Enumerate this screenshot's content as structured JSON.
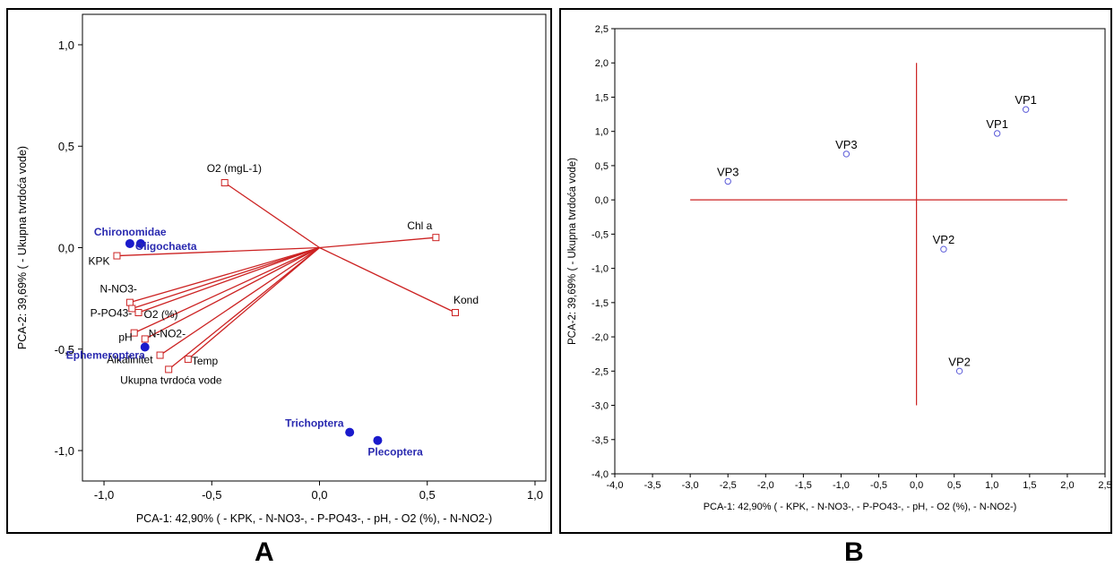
{
  "chart_data": [
    {
      "panel": "A",
      "type": "scatter",
      "xlabel": "PCA-1: 42,90% ( - KPK, - N-NO3-, - P-PO43-, - pH, - O2 (%), - N-NO2-)",
      "ylabel": "PCA-2: 39,69% ( - Ukupna tvrdoća vode)",
      "xlim": [
        -1.1,
        1.05
      ],
      "ylim": [
        -1.15,
        1.15
      ],
      "x_ticks": [
        -1.0,
        -0.5,
        0.0,
        0.5,
        1.0
      ],
      "x_tick_labels": [
        "-1,0",
        "-0,5",
        "0,0",
        "0,5",
        "1,0"
      ],
      "y_ticks": [
        -1.0,
        -0.5,
        0.0,
        0.5,
        1.0
      ],
      "y_tick_labels": [
        "-1,0",
        "-0,5",
        "0,0",
        "0,5",
        "1,0"
      ],
      "grid": false,
      "variables": [
        {
          "label": "O2 (mgL-1)",
          "x": -0.44,
          "y": 0.32
        },
        {
          "label": "Chl a",
          "x": 0.54,
          "y": 0.05
        },
        {
          "label": "Kond",
          "x": 0.63,
          "y": -0.32
        },
        {
          "label": "KPK",
          "x": -0.94,
          "y": -0.04
        },
        {
          "label": "N-NO3-",
          "x": -0.88,
          "y": -0.27
        },
        {
          "label": "P-PO43-",
          "x": -0.87,
          "y": -0.3
        },
        {
          "label": "O2 (%)",
          "x": -0.84,
          "y": -0.32
        },
        {
          "label": "pH",
          "x": -0.86,
          "y": -0.42
        },
        {
          "label": "N-NO2-",
          "x": -0.81,
          "y": -0.45
        },
        {
          "label": "Alkalinitet",
          "x": -0.74,
          "y": -0.53
        },
        {
          "label": "Temp",
          "x": -0.61,
          "y": -0.55
        },
        {
          "label": "Ukupna tvrdoća vode",
          "x": -0.7,
          "y": -0.6
        }
      ],
      "taxa": [
        {
          "label": "Chironomidae",
          "x": -0.88,
          "y": 0.02
        },
        {
          "label": "Oligochaeta",
          "x": -0.83,
          "y": 0.02
        },
        {
          "label": "Ephemeroptera",
          "x": -0.81,
          "y": -0.49
        },
        {
          "label": "Trichoptera",
          "x": 0.14,
          "y": -0.91
        },
        {
          "label": "Plecoptera",
          "x": 0.27,
          "y": -0.95
        }
      ],
      "colors": {
        "vector": "#cc2222",
        "taxa": "#1a1acc",
        "taxa_label": "#2a2ab0"
      }
    },
    {
      "panel": "B",
      "type": "scatter",
      "xlabel": "PCA-1: 42,90% ( - KPK, - N-NO3-, - P-PO43-, - pH, - O2 (%), - N-NO2-)",
      "ylabel": "PCA-2: 39,69% ( - Ukupna tvrdoća vode)",
      "xlim": [
        -4.0,
        2.5
      ],
      "ylim": [
        -4.0,
        2.5
      ],
      "x_ticks": [
        -4.0,
        -3.5,
        -3.0,
        -2.5,
        -2.0,
        -1.5,
        -1.0,
        -0.5,
        0.0,
        0.5,
        1.0,
        1.5,
        2.0,
        2.5
      ],
      "x_tick_labels": [
        "-4,0",
        "-3,5",
        "-3,0",
        "-2,5",
        "-2,0",
        "-1,5",
        "-1,0",
        "-0,5",
        "0,0",
        "0,5",
        "1,0",
        "1,5",
        "2,0",
        "2,5"
      ],
      "y_ticks": [
        2.5,
        2.0,
        1.5,
        1.0,
        0.5,
        0.0,
        -0.5,
        -1.0,
        -1.5,
        -2.0,
        -2.5,
        -3.0,
        -3.5,
        -4.0
      ],
      "y_tick_labels": [
        "2,5",
        "2,0",
        "1,5",
        "1,0",
        "0,5",
        "0,0",
        "-0,5",
        "-1,0",
        "-1,5",
        "-2,0",
        "-2,5",
        "-3,0",
        "-3,5",
        "-4,0"
      ],
      "grid": false,
      "reference_lines": {
        "horizontal": {
          "y": 0,
          "x_from": -3.0,
          "x_to": 2.0
        },
        "vertical": {
          "x": 0,
          "y_from": -3.0,
          "y_to": 2.0
        }
      },
      "points": [
        {
          "label": "VP1",
          "x": 1.45,
          "y": 1.32
        },
        {
          "label": "VP1",
          "x": 1.07,
          "y": 0.97
        },
        {
          "label": "VP3",
          "x": -0.93,
          "y": 0.67
        },
        {
          "label": "VP3",
          "x": -2.5,
          "y": 0.27
        },
        {
          "label": "VP2",
          "x": 0.36,
          "y": -0.72
        },
        {
          "label": "VP2",
          "x": 0.57,
          "y": -2.5
        }
      ],
      "colors": {
        "point": "#5a5ad8",
        "reference": "#cc2222"
      }
    }
  ],
  "panel_labels": [
    "A",
    "B"
  ]
}
